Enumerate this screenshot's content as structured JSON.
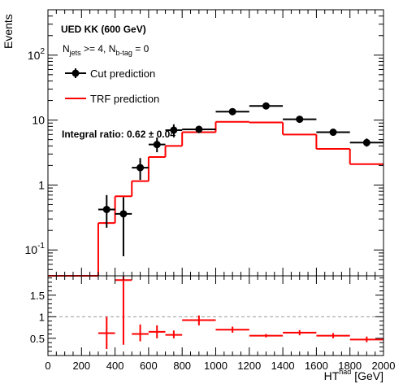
{
  "chart_data": [
    {
      "type": "line",
      "panel": "main",
      "title": "UED KK (600 GeV)",
      "selection": {
        "njets_main": "N",
        "njets_sub": "jets",
        "njets_rest": " >= 4, N",
        "nbtag_sub": "b-tag",
        "nbtag_rest": " = 0"
      },
      "ylabel": "Events",
      "yscale": "log",
      "ylim": [
        0.04,
        500
      ],
      "xlim": [
        0,
        2000
      ],
      "y_ticks": [
        {
          "value": 0.1,
          "base": "10",
          "exp": "-1"
        },
        {
          "value": 1,
          "label": "1"
        },
        {
          "value": 10,
          "label": "10"
        },
        {
          "value": 100,
          "base": "10",
          "exp": "2"
        }
      ],
      "annotation": "Integral ratio: 0.62 ± 0.04",
      "legend_placement": "top-left",
      "series": [
        {
          "name": "Cut prediction",
          "color": "#000000",
          "style": "points-with-errors",
          "points": [
            {
              "x": 350,
              "xerr": 50,
              "y": 0.42,
              "ylo": 0.22,
              "yhi": 0.7
            },
            {
              "x": 450,
              "xerr": 50,
              "y": 0.36,
              "ylo": 0.08,
              "yhi": 0.65
            },
            {
              "x": 550,
              "xerr": 50,
              "y": 1.85,
              "ylo": 1.2,
              "yhi": 2.6
            },
            {
              "x": 650,
              "xerr": 50,
              "y": 4.2,
              "ylo": 3.2,
              "yhi": 5.4
            },
            {
              "x": 750,
              "xerr": 50,
              "y": 7.0,
              "ylo": 5.6,
              "yhi": 8.6
            },
            {
              "x": 900,
              "xerr": 100,
              "y": 7.2,
              "ylo": 6.3,
              "yhi": 8.2
            },
            {
              "x": 1100,
              "xerr": 100,
              "y": 13.5,
              "ylo": 12.3,
              "yhi": 14.8
            },
            {
              "x": 1300,
              "xerr": 100,
              "y": 16.5,
              "ylo": 15.2,
              "yhi": 17.9
            },
            {
              "x": 1500,
              "xerr": 100,
              "y": 10.3,
              "ylo": 9.4,
              "yhi": 11.3
            },
            {
              "x": 1700,
              "xerr": 100,
              "y": 6.5,
              "ylo": 5.8,
              "yhi": 7.3
            },
            {
              "x": 1900,
              "xerr": 100,
              "y": 4.5,
              "ylo": 3.9,
              "yhi": 5.2
            }
          ]
        },
        {
          "name": "TRF prediction",
          "color": "#ff0000",
          "style": "step",
          "bins": [
            {
              "lo": 0,
              "hi": 300,
              "y": 0.04
            },
            {
              "lo": 300,
              "hi": 400,
              "y": 0.26
            },
            {
              "lo": 400,
              "hi": 500,
              "y": 0.67
            },
            {
              "lo": 500,
              "hi": 600,
              "y": 1.15
            },
            {
              "lo": 600,
              "hi": 700,
              "y": 2.7
            },
            {
              "lo": 700,
              "hi": 800,
              "y": 4.0
            },
            {
              "lo": 800,
              "hi": 1000,
              "y": 6.5
            },
            {
              "lo": 1000,
              "hi": 1200,
              "y": 9.4
            },
            {
              "lo": 1200,
              "hi": 1400,
              "y": 9.2
            },
            {
              "lo": 1400,
              "hi": 1600,
              "y": 6.0
            },
            {
              "lo": 1600,
              "hi": 1800,
              "y": 3.6
            },
            {
              "lo": 1800,
              "hi": 2000,
              "y": 2.1
            }
          ]
        }
      ]
    },
    {
      "type": "scatter",
      "panel": "ratio",
      "xlabel_main": "HT",
      "xlabel_sup": "had",
      "xlabel_rest": " [GeV]",
      "xlim": [
        0,
        2000
      ],
      "ylim": [
        0.1,
        1.95
      ],
      "x_ticks": [
        "0",
        "200",
        "400",
        "600",
        "800",
        "1000",
        "1200",
        "1400",
        "1600",
        "1800",
        "2000"
      ],
      "y_ticks": [
        "0.5",
        "1",
        "1.5"
      ],
      "reference_line": 1,
      "color": "#ff0000",
      "points": [
        {
          "x": 350,
          "xerr": 50,
          "y": 0.62,
          "ylo": 0.25,
          "yhi": 1.0
        },
        {
          "x": 450,
          "xerr": 50,
          "y": 1.85,
          "ylo": 0.35,
          "yhi": 1.95
        },
        {
          "x": 550,
          "xerr": 50,
          "y": 0.6,
          "ylo": 0.43,
          "yhi": 0.82
        },
        {
          "x": 650,
          "xerr": 50,
          "y": 0.65,
          "ylo": 0.5,
          "yhi": 0.8
        },
        {
          "x": 750,
          "xerr": 50,
          "y": 0.58,
          "ylo": 0.5,
          "yhi": 0.68
        },
        {
          "x": 900,
          "xerr": 100,
          "y": 0.92,
          "ylo": 0.8,
          "yhi": 1.03
        },
        {
          "x": 1100,
          "xerr": 100,
          "y": 0.7,
          "ylo": 0.63,
          "yhi": 0.77
        },
        {
          "x": 1300,
          "xerr": 100,
          "y": 0.56,
          "ylo": 0.52,
          "yhi": 0.6
        },
        {
          "x": 1500,
          "xerr": 100,
          "y": 0.63,
          "ylo": 0.57,
          "yhi": 0.69
        },
        {
          "x": 1700,
          "xerr": 100,
          "y": 0.56,
          "ylo": 0.5,
          "yhi": 0.62
        },
        {
          "x": 1900,
          "xerr": 100,
          "y": 0.47,
          "ylo": 0.41,
          "yhi": 0.54
        }
      ]
    }
  ]
}
